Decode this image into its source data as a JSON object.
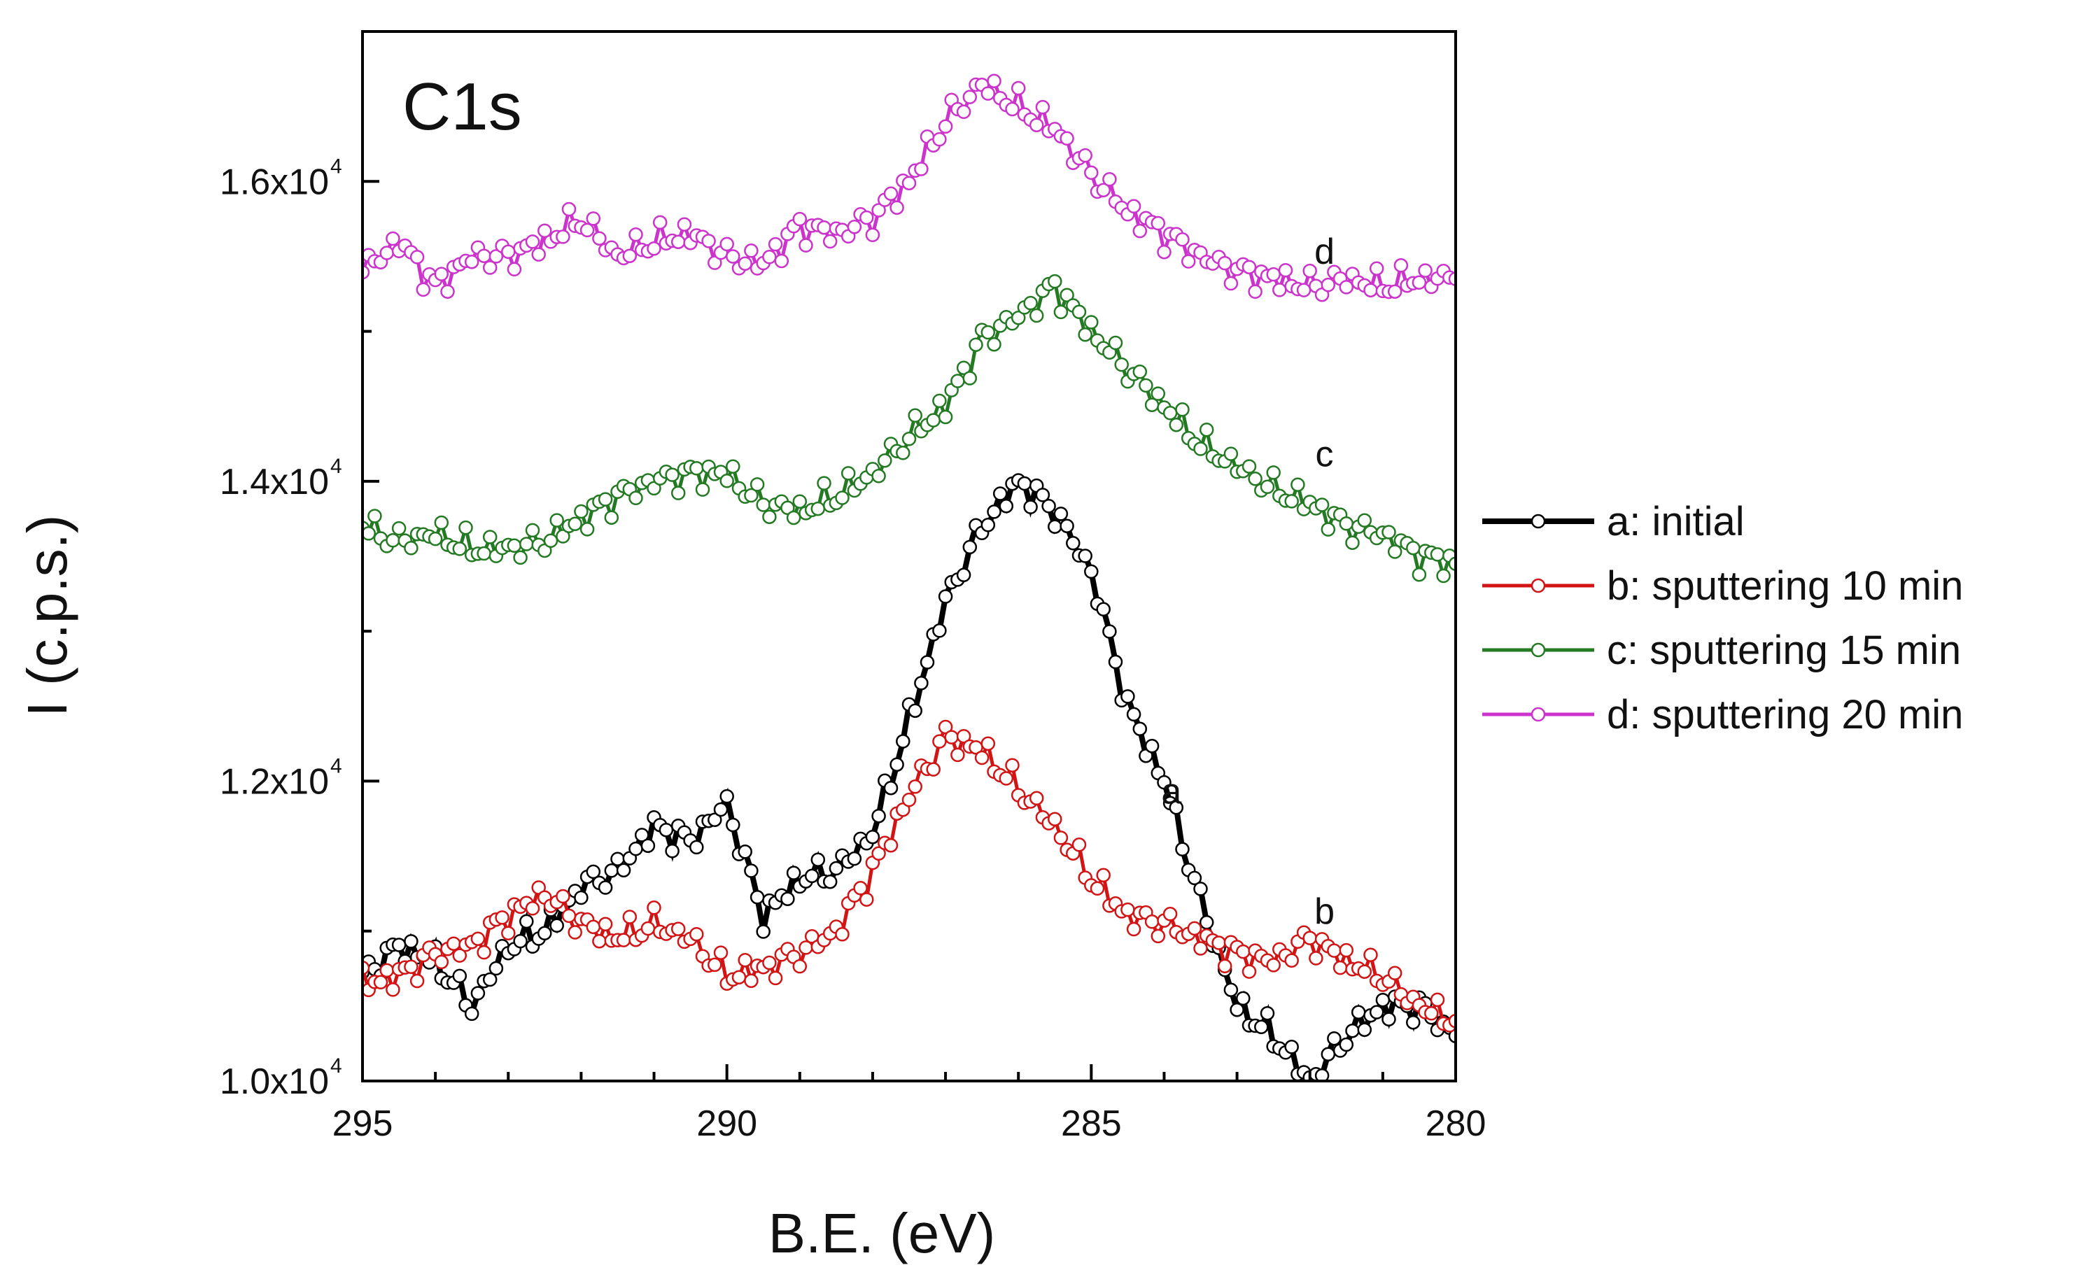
{
  "chart_data": {
    "type": "line",
    "title": "C1s",
    "xlabel": "B.E. (eV)",
    "ylabel": "I (c.p.s.)",
    "xlim": [
      295,
      280
    ],
    "ylim": [
      10000,
      17000
    ],
    "x_ticks": [
      {
        "value": 295,
        "label": "295"
      },
      {
        "value": 290,
        "label": "290"
      },
      {
        "value": 285,
        "label": "285"
      },
      {
        "value": 280,
        "label": "280"
      }
    ],
    "y_ticks": [
      {
        "value": 10000,
        "mantissa": "1.0x10",
        "exponent": "4"
      },
      {
        "value": 12000,
        "mantissa": "1.2x10",
        "exponent": "4"
      },
      {
        "value": 14000,
        "mantissa": "1.4x10",
        "exponent": "4"
      },
      {
        "value": 16000,
        "mantissa": "1.6x10",
        "exponent": "4"
      }
    ],
    "legend_position": "right",
    "series": [
      {
        "id": "a",
        "name": "a: initial",
        "tag": "a",
        "color": "#000000",
        "tag_at": [
          283.9,
          11850
        ],
        "x": [
          295.0,
          294.5,
          294.0,
          293.5,
          293.0,
          292.5,
          292.0,
          291.5,
          291.0,
          290.5,
          290.0,
          289.5,
          289.0,
          288.5,
          288.0,
          287.5,
          287.0,
          286.5,
          286.0,
          285.5,
          285.0,
          284.5,
          284.0,
          283.5,
          283.0,
          282.5,
          282.0,
          281.5,
          281.0,
          280.5,
          280.0
        ],
        "y": [
          10700,
          10900,
          10800,
          10500,
          10900,
          11000,
          11300,
          11400,
          11700,
          11600,
          11850,
          11100,
          11350,
          11400,
          11650,
          12400,
          13200,
          13700,
          14000,
          13800,
          13400,
          12500,
          12000,
          11200,
          10500,
          10300,
          10000,
          10300,
          10500,
          10500,
          10300
        ]
      },
      {
        "id": "b",
        "name": "b: sputtering 10 min",
        "tag": "b",
        "color": "#d21414",
        "tag_at": [
          281.8,
          11050
        ],
        "x": [
          295.0,
          294.5,
          294.0,
          293.5,
          293.0,
          292.5,
          292.0,
          291.5,
          291.0,
          290.5,
          290.0,
          289.5,
          289.0,
          288.5,
          288.0,
          287.5,
          287.0,
          286.5,
          286.0,
          285.5,
          285.0,
          284.5,
          284.0,
          283.5,
          283.0,
          282.5,
          282.0,
          281.5,
          281.0,
          280.5,
          280.0
        ],
        "y": [
          10650,
          10700,
          10850,
          10900,
          11100,
          11250,
          11050,
          10950,
          11050,
          10950,
          10700,
          10750,
          10850,
          11000,
          11400,
          11900,
          12300,
          12200,
          11950,
          11700,
          11350,
          11100,
          11050,
          10950,
          10850,
          10800,
          10950,
          10800,
          10700,
          10500,
          10400
        ]
      },
      {
        "id": "c",
        "name": "c: sputtering 15 min",
        "tag": "c",
        "color": "#237a23",
        "tag_at": [
          281.8,
          14100
        ],
        "x": [
          295.0,
          294.5,
          294.0,
          293.5,
          293.0,
          292.5,
          292.0,
          291.5,
          291.0,
          290.5,
          290.0,
          289.5,
          289.0,
          288.5,
          288.0,
          287.5,
          287.0,
          286.5,
          286.0,
          285.5,
          285.0,
          284.5,
          284.0,
          283.5,
          283.0,
          282.5,
          282.0,
          281.5,
          281.0,
          280.5,
          280.0
        ],
        "y": [
          13700,
          13600,
          13650,
          13550,
          13550,
          13600,
          13750,
          13900,
          14000,
          14050,
          14050,
          13850,
          13800,
          13900,
          14050,
          14300,
          14500,
          14950,
          15100,
          15300,
          15000,
          14750,
          14500,
          14250,
          14100,
          13950,
          13850,
          13700,
          13650,
          13500,
          13450
        ]
      },
      {
        "id": "d",
        "name": "d: sputtering 20 min",
        "tag": "d",
        "color": "#cc33cc",
        "tag_at": [
          281.8,
          15450
        ],
        "x": [
          295.0,
          294.5,
          294.0,
          293.5,
          293.0,
          292.5,
          292.0,
          291.5,
          291.0,
          290.5,
          290.0,
          289.5,
          289.0,
          288.5,
          288.0,
          287.5,
          287.0,
          286.5,
          286.0,
          285.5,
          285.0,
          284.5,
          284.0,
          283.5,
          283.0,
          282.5,
          282.0,
          281.5,
          281.0,
          280.5,
          280.0
        ],
        "y": [
          15400,
          15600,
          15300,
          15500,
          15500,
          15600,
          15750,
          15500,
          15600,
          15650,
          15500,
          15450,
          15700,
          15650,
          15750,
          16000,
          16400,
          16650,
          16500,
          16350,
          16050,
          15800,
          15650,
          15500,
          15400,
          15350,
          15300,
          15350,
          15300,
          15350,
          15350
        ]
      }
    ]
  }
}
